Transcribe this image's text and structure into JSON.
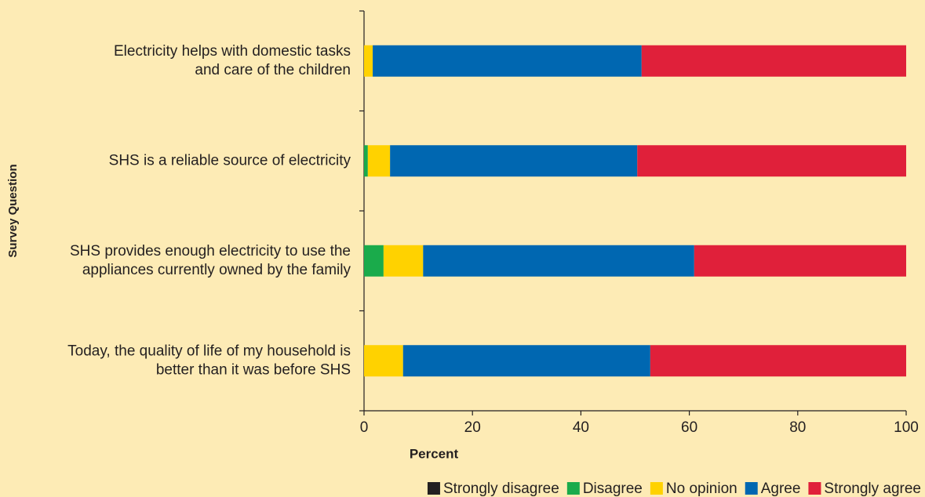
{
  "chart_data": {
    "type": "stacked_bar_horizontal",
    "categories": [
      [
        "Electricity helps with domestic tasks",
        "and care of the children"
      ],
      [
        "SHS is a reliable source of electricity"
      ],
      [
        "SHS provides enough electricity to use the",
        "appliances currently owned by the family"
      ],
      [
        "Today, the quality of life of my household is",
        "better than it was before SHS"
      ]
    ],
    "series": [
      {
        "name": "Strongly disagree",
        "color": "#231f20",
        "values": [
          0,
          0,
          0,
          0
        ]
      },
      {
        "name": "Disagree",
        "color": "#1aab4b",
        "values": [
          0,
          0.7,
          3.6,
          0
        ]
      },
      {
        "name": "No opinion",
        "color": "#ffd200",
        "values": [
          1.6,
          4.1,
          7.3,
          7.2
        ]
      },
      {
        "name": "Agree",
        "color": "#0067b1",
        "values": [
          49.6,
          45.6,
          50,
          45.6
        ]
      },
      {
        "name": "Strongly agree",
        "color": "#e0203a",
        "values": [
          48.8,
          49.6,
          39.1,
          47.2
        ]
      }
    ],
    "xlabel": "Percent",
    "ylabel": "Survey Question",
    "xlim": [
      0,
      100
    ],
    "xticks": [
      0,
      20,
      40,
      60,
      80,
      100
    ],
    "legend": "bottom-right"
  }
}
